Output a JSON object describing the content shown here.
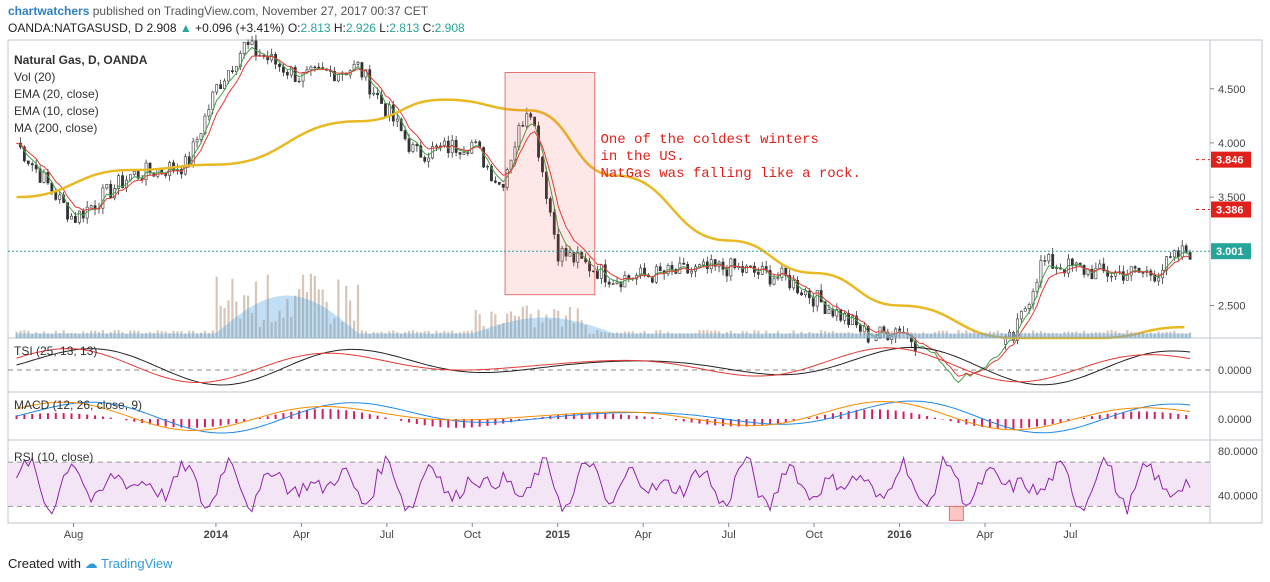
{
  "header": {
    "user": "chartwatchers",
    "published": "published on TradingView.com, November 27, 2017 00:37 CET",
    "symbol": "OANDA:NATGASUSD, D",
    "price": "2.908",
    "change": "+0.096 (+3.41%)",
    "o_label": "O:",
    "o_val": "2.813",
    "h_label": "H:",
    "h_val": "2.926",
    "l_label": "L:",
    "l_val": "2.813",
    "c_label": "C:",
    "c_val": "2.908"
  },
  "footer": {
    "created": "Created with",
    "brand": "TradingView"
  },
  "colors": {
    "ema20": "#e53935",
    "ema10": "#43a047",
    "ma200": "#e8b923",
    "volume": "#4fa3e0",
    "rsi": "#8e24aa",
    "annotation": "#e0201b"
  },
  "chart_data": [
    {
      "type": "line",
      "legend": [
        "Natural Gas, D, OANDA",
        "Vol (20)",
        "EMA (20, close)",
        "EMA (10, close)",
        "MA (200, close)"
      ],
      "y_ticks": [
        "4.500",
        "4.000",
        "3.500",
        "2.500"
      ],
      "ylim": [
        2.2,
        4.95
      ],
      "x_ticks": [
        "Aug",
        "2014",
        "Apr",
        "Jul",
        "Oct",
        "2015",
        "Apr",
        "Jul",
        "Oct",
        "2016",
        "Apr",
        "Jul"
      ],
      "price_labels": [
        {
          "text": "3.846",
          "value": 3.846
        },
        {
          "text": "3.386",
          "value": 3.386
        },
        {
          "text": "3.001",
          "value": 3.001
        }
      ],
      "annotation": [
        "One of the coldest winters",
        "in the US.",
        "NatGas was falling like a rock."
      ],
      "series": [
        {
          "name": "Natural Gas, D, OANDA",
          "x": [
            "2013-06",
            "2013-08",
            "2013-10",
            "2013-12",
            "2014-01",
            "2014-02",
            "2014-04",
            "2014-06",
            "2014-08",
            "2014-10",
            "2014-11",
            "2014-12",
            "2015-01",
            "2015-03",
            "2015-05",
            "2015-07",
            "2015-09",
            "2015-11",
            "2015-12",
            "2016-01",
            "2016-03",
            "2016-05",
            "2016-06",
            "2016-08",
            "2016-10",
            "2016-11"
          ],
          "values": [
            4.0,
            3.3,
            3.7,
            3.8,
            4.5,
            4.9,
            4.6,
            4.7,
            3.9,
            4.0,
            3.6,
            4.4,
            3.0,
            2.75,
            2.8,
            2.85,
            2.75,
            2.4,
            2.2,
            2.3,
            1.8,
            2.2,
            2.9,
            2.8,
            2.8,
            3.0
          ]
        },
        {
          "name": "MA (200, close)",
          "x": [
            "2013-06",
            "2013-10",
            "2014-01",
            "2014-06",
            "2014-09",
            "2014-12",
            "2015-03",
            "2015-07",
            "2015-10",
            "2016-01",
            "2016-05",
            "2016-08",
            "2016-11"
          ],
          "values": [
            3.5,
            3.75,
            3.8,
            4.2,
            4.4,
            4.3,
            3.7,
            3.1,
            2.8,
            2.5,
            2.2,
            2.2,
            2.3
          ]
        }
      ]
    },
    {
      "type": "line",
      "legend": [
        "TSI (25, 13, 13)"
      ],
      "y_ticks": [
        "0.0000"
      ]
    },
    {
      "type": "bar",
      "legend": [
        "MACD (12, 26, close, 9)"
      ],
      "y_ticks": [
        "0.0000"
      ]
    },
    {
      "type": "line",
      "legend": [
        "RSI (10, close)"
      ],
      "y_ticks": [
        "80.0000",
        "40.0000"
      ],
      "ylim": [
        15,
        90
      ]
    }
  ]
}
